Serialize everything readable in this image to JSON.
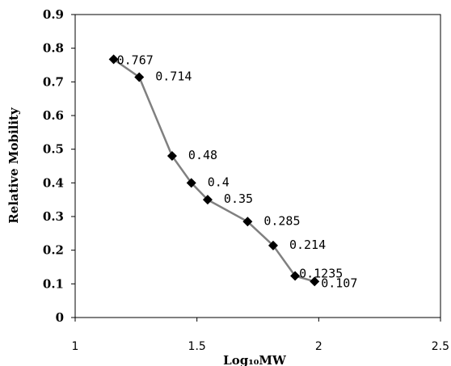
{
  "chart_data": {
    "type": "line",
    "xlabel": "Log₁₀MW",
    "ylabel": "Relative Mobility",
    "xlim": [
      1,
      2.5
    ],
    "ylim": [
      0,
      0.9
    ],
    "x_ticks": [
      "1",
      "1.5",
      "2",
      "2.5"
    ],
    "y_ticks": [
      "0",
      "0.1",
      "0.2",
      "0.3",
      "0.4",
      "0.5",
      "0.6",
      "0.7",
      "0.8",
      "0.9"
    ],
    "grid": false,
    "legend": "none",
    "series": [
      {
        "x": [
          1.158,
          1.263,
          1.398,
          1.477,
          1.544,
          1.708,
          1.813,
          1.903,
          1.983
        ],
        "y": [
          0.767,
          0.714,
          0.48,
          0.4,
          0.35,
          0.285,
          0.214,
          0.1235,
          0.107
        ],
        "labels": [
          "0.767",
          "0.714",
          "0.48",
          "0.4",
          "0.35",
          "0.285",
          "0.214",
          "0.1235",
          "0.107"
        ],
        "line_color": "#808080",
        "marker_color": "#000000",
        "marker": "diamond"
      }
    ]
  }
}
